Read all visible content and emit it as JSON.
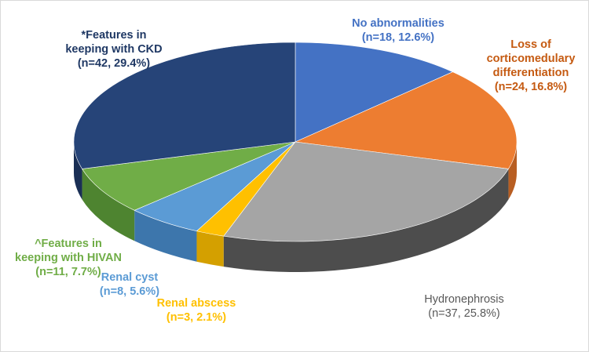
{
  "chart_data": {
    "type": "pie",
    "style": "3d-exploded-none",
    "start_angle": "12 o'clock, clockwise",
    "slices": [
      {
        "label_lines": [
          "No abnormalities",
          "(n=18, 12.6%)"
        ],
        "n": 18,
        "percent": 12.6,
        "color": "#4472C4",
        "top_color": "#4472C4",
        "side_color": "#2F5597",
        "label_color": "#4472C4",
        "label_weight": "bold"
      },
      {
        "label_lines": [
          "Loss of",
          "corticomedulary",
          "differentiation",
          "(n=24, 16.8%)"
        ],
        "n": 24,
        "percent": 16.8,
        "color": "#ED7D31",
        "top_color": "#ED7D31",
        "side_color": "#B85E22",
        "label_color": "#C55A11",
        "label_weight": "bold"
      },
      {
        "label_lines": [
          "Hydronephrosis",
          "(n=37, 25.8%)"
        ],
        "n": 37,
        "percent": 25.8,
        "color": "#A5A5A5",
        "top_color": "#A5A5A5",
        "side_color": "#4D4D4D",
        "label_color": "#595959",
        "label_weight": "normal"
      },
      {
        "label_lines": [
          "Renal abscess",
          "(n=3, 2.1%)"
        ],
        "n": 3,
        "percent": 2.1,
        "color": "#FFC000",
        "top_color": "#FFC000",
        "side_color": "#D4A000",
        "label_color": "#FFC000",
        "label_weight": "bold"
      },
      {
        "label_lines": [
          "Renal cyst",
          "(n=8, 5.6%)"
        ],
        "n": 8,
        "percent": 5.6,
        "color": "#5B9BD5",
        "top_color": "#5B9BD5",
        "side_color": "#3D76AC",
        "label_color": "#5B9BD5",
        "label_weight": "bold"
      },
      {
        "label_lines": [
          "^Features in",
          "keeping with HIVAN",
          "(n=11, 7.7%)"
        ],
        "n": 11,
        "percent": 7.7,
        "color": "#70AD47",
        "top_color": "#70AD47",
        "side_color": "#4E8430",
        "label_color": "#70AD47",
        "label_weight": "bold"
      },
      {
        "label_lines": [
          "*Features in",
          "keeping with CKD",
          "(n=42, 29.4%)"
        ],
        "n": 42,
        "percent": 29.4,
        "color": "#264478",
        "top_color": "#264478",
        "side_color": "#1A2F55",
        "label_color": "#1F3864",
        "label_weight": "bold"
      }
    ]
  }
}
